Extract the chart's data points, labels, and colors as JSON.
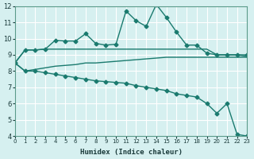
{
  "xlabel": "Humidex (Indice chaleur)",
  "ylabel": "",
  "background_color": "#d6f0f0",
  "line_color": "#1a7a6e",
  "grid_color": "#ffffff",
  "xlim": [
    0,
    23
  ],
  "ylim": [
    4,
    12
  ],
  "yticks": [
    4,
    5,
    6,
    7,
    8,
    9,
    10,
    11,
    12
  ],
  "xticks": [
    0,
    1,
    2,
    3,
    4,
    5,
    6,
    7,
    8,
    9,
    10,
    11,
    12,
    13,
    14,
    15,
    16,
    17,
    18,
    19,
    20,
    21,
    22,
    23
  ],
  "series": [
    {
      "x": [
        0,
        1,
        2,
        3,
        4,
        5,
        6,
        7,
        8,
        9,
        10,
        11,
        12,
        13,
        14,
        15,
        16,
        17,
        18,
        19,
        20,
        21,
        22,
        23
      ],
      "y": [
        8.5,
        9.3,
        9.3,
        9.35,
        9.9,
        9.85,
        9.85,
        10.3,
        9.7,
        9.6,
        9.65,
        11.7,
        11.1,
        10.75,
        12.1,
        11.3,
        10.4,
        9.6,
        9.6,
        9.1,
        9.0,
        9.0,
        9.0,
        9.0
      ],
      "marker": "D",
      "markersize": 2.5,
      "linewidth": 1.0
    },
    {
      "x": [
        0,
        1,
        2,
        3,
        4,
        5,
        6,
        7,
        8,
        9,
        10,
        11,
        12,
        13,
        14,
        15,
        16,
        17,
        18,
        19,
        20,
        21,
        22,
        23
      ],
      "y": [
        8.5,
        9.3,
        9.3,
        9.35,
        9.35,
        9.35,
        9.35,
        9.35,
        9.35,
        9.35,
        9.35,
        9.35,
        9.35,
        9.35,
        9.35,
        9.35,
        9.35,
        9.35,
        9.35,
        9.35,
        9.0,
        9.0,
        9.0,
        8.9
      ],
      "marker": null,
      "markersize": 0,
      "linewidth": 1.0
    },
    {
      "x": [
        0,
        1,
        2,
        3,
        4,
        5,
        6,
        7,
        8,
        9,
        10,
        11,
        12,
        13,
        14,
        15,
        16,
        17,
        18,
        19,
        20,
        21,
        22,
        23
      ],
      "y": [
        8.5,
        8.0,
        8.1,
        8.2,
        8.3,
        8.35,
        8.4,
        8.5,
        8.5,
        8.55,
        8.6,
        8.65,
        8.7,
        8.75,
        8.8,
        8.85,
        8.85,
        8.85,
        8.85,
        8.85,
        8.85,
        8.85,
        8.85,
        8.85
      ],
      "marker": null,
      "markersize": 0,
      "linewidth": 1.0
    },
    {
      "x": [
        0,
        1,
        2,
        3,
        4,
        5,
        6,
        7,
        8,
        9,
        10,
        11,
        12,
        13,
        14,
        15,
        16,
        17,
        18,
        19,
        20,
        21,
        22,
        23
      ],
      "y": [
        8.5,
        8.0,
        8.0,
        7.9,
        7.8,
        7.7,
        7.6,
        7.5,
        7.4,
        7.35,
        7.3,
        7.25,
        7.1,
        7.0,
        6.9,
        6.8,
        6.6,
        6.5,
        6.4,
        6.0,
        5.4,
        6.0,
        4.1,
        4.0
      ],
      "marker": "D",
      "markersize": 2.5,
      "linewidth": 1.0
    }
  ]
}
